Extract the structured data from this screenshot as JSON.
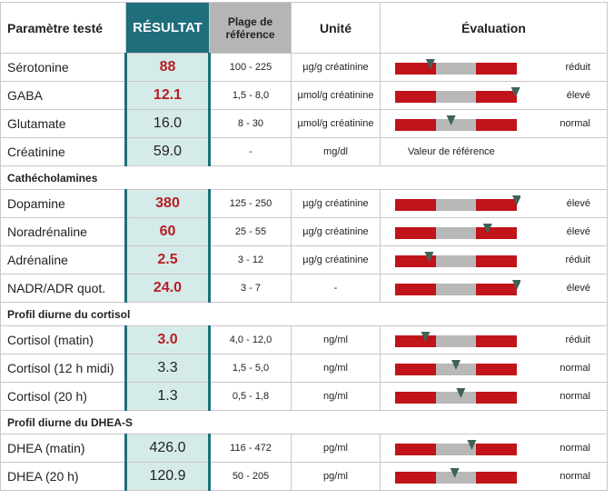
{
  "header": {
    "name": "Paramètre testé",
    "result": "RÉSULTAT",
    "range": "Plage de référence",
    "unit": "Unité",
    "evaluation": "Évaluation"
  },
  "table": {
    "rows": [
      {
        "name": "Sérotonine",
        "result": "88",
        "range": "100 - 225",
        "unit": "µg/g créatinine",
        "evaluation": "réduit",
        "highlight": true,
        "gauge": 0.29
      },
      {
        "name": "GABA",
        "result": "12.1",
        "range": "1,5 - 8,0",
        "unit": "µmol/g créatinine",
        "evaluation": "élevé",
        "highlight": true,
        "gauge": 0.99
      },
      {
        "name": "Glutamate",
        "result": "16.0",
        "range": "8 - 30",
        "unit": "µmol/g créatinine",
        "evaluation": "normal",
        "highlight": false,
        "gauge": 0.46
      },
      {
        "name": "Créatinine",
        "result": "59.0",
        "range": "-",
        "unit": "mg/dl",
        "evaluation": "Valeur de référence",
        "highlight": false
      },
      {
        "section": "Cathécholamines"
      },
      {
        "name": "Dopamine",
        "result": "380",
        "range": "125 - 250",
        "unit": "µg/g créatinine",
        "evaluation": "élevé",
        "highlight": true,
        "gauge": 1.0
      },
      {
        "name": "Noradrénaline",
        "result": "60",
        "range": "25 - 55",
        "unit": "µg/g créatinine",
        "evaluation": "élevé",
        "highlight": true,
        "gauge": 0.76
      },
      {
        "name": "Adrénaline",
        "result": "2.5",
        "range": "3 - 12",
        "unit": "µg/g créatinine",
        "evaluation": "réduit",
        "highlight": true,
        "gauge": 0.28
      },
      {
        "name": "NADR/ADR quot.",
        "result": "24.0",
        "range": "3 - 7",
        "unit": "-",
        "evaluation": "élevé",
        "highlight": true,
        "gauge": 1.0
      },
      {
        "section": "Profil diurne du cortisol"
      },
      {
        "name": "Cortisol (matin)",
        "result": "3.0",
        "range": "4,0 - 12,0",
        "unit": "ng/ml",
        "evaluation": "réduit",
        "highlight": true,
        "gauge": 0.25
      },
      {
        "name": "Cortisol (12 h midi)",
        "result": "3.3",
        "range": "1,5 - 5,0",
        "unit": "ng/ml",
        "evaluation": "normal",
        "highlight": false,
        "gauge": 0.5
      },
      {
        "name": "Cortisol (20 h)",
        "result": "1.3",
        "range": "0,5 - 1,8",
        "unit": "ng/ml",
        "evaluation": "normal",
        "highlight": false,
        "gauge": 0.54
      },
      {
        "section": "Profil diurne du DHEA-S"
      },
      {
        "name": "DHEA (matin)",
        "result": "426.0",
        "range": "116 - 472",
        "unit": "pg/ml",
        "evaluation": "normal",
        "highlight": false,
        "gauge": 0.63
      },
      {
        "name": "DHEA (20 h)",
        "result": "120.9",
        "range": "50 - 205",
        "unit": "pg/ml",
        "evaluation": "normal",
        "highlight": false,
        "gauge": 0.49
      }
    ]
  }
}
